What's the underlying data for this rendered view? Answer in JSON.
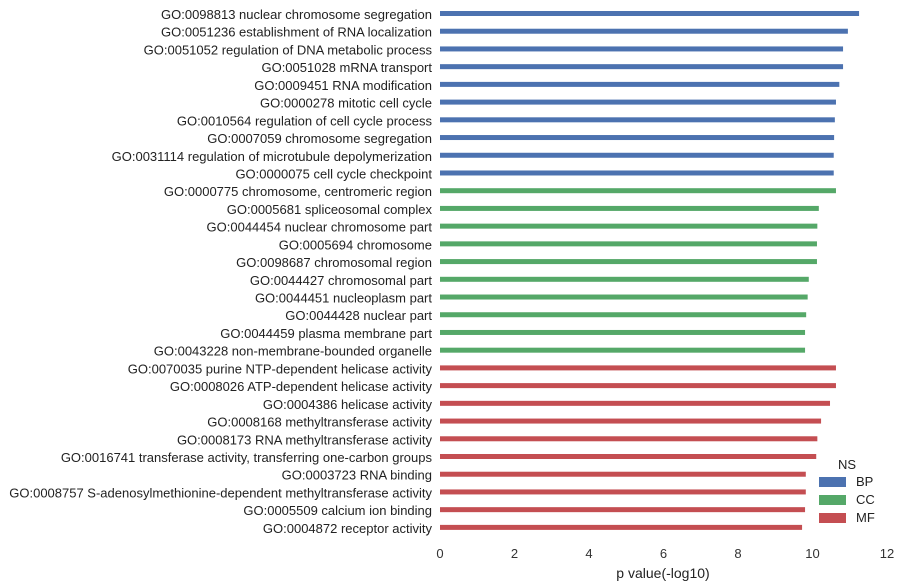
{
  "chart_data": {
    "type": "bar",
    "orientation": "horizontal",
    "xlabel": "p value(-log10)",
    "ylabel": "",
    "xlim": [
      0,
      12
    ],
    "xticks": [
      "0",
      "2",
      "4",
      "6",
      "8",
      "10",
      "12"
    ],
    "grid": false,
    "legend": {
      "title": "NS",
      "placement": "lower-right",
      "entries": [
        {
          "name": "BP",
          "color": "#4c72b0"
        },
        {
          "name": "CC",
          "color": "#55a868"
        },
        {
          "name": "MF",
          "color": "#c44e52"
        }
      ]
    },
    "categories": [
      "GO:0098813 nuclear chromosome segregation",
      "GO:0051236 establishment of RNA localization",
      "GO:0051052 regulation of DNA metabolic process",
      "GO:0051028 mRNA transport",
      "GO:0009451 RNA modification",
      "GO:0000278 mitotic cell cycle",
      "GO:0010564 regulation of cell cycle process",
      "GO:0007059 chromosome segregation",
      "GO:0031114 regulation of microtubule depolymerization",
      "GO:0000075 cell cycle checkpoint",
      "GO:0000775 chromosome, centromeric region",
      "GO:0005681 spliceosomal complex",
      "GO:0044454 nuclear chromosome part",
      "GO:0005694 chromosome",
      "GO:0098687 chromosomal region",
      "GO:0044427 chromosomal part",
      "GO:0044451 nucleoplasm part",
      "GO:0044428 nuclear part",
      "GO:0044459 plasma membrane part",
      "GO:0043228 non-membrane-bounded organelle",
      "GO:0070035 purine NTP-dependent helicase activity",
      "GO:0008026 ATP-dependent helicase activity",
      "GO:0004386 helicase activity",
      "GO:0008168 methyltransferase activity",
      "GO:0008173 RNA methyltransferase activity",
      "GO:0016741 transferase activity, transferring one-carbon groups",
      "GO:0003723 RNA binding",
      "GO:0008757 S-adenosylmethionine-dependent methyltransferase activity",
      "GO:0005509 calcium ion binding",
      "GO:0004872 receptor activity"
    ],
    "values": [
      11.25,
      10.95,
      10.82,
      10.82,
      10.72,
      10.63,
      10.6,
      10.58,
      10.57,
      10.57,
      10.63,
      10.17,
      10.13,
      10.12,
      10.12,
      9.9,
      9.87,
      9.83,
      9.8,
      9.8,
      10.63,
      10.63,
      10.47,
      10.23,
      10.13,
      10.1,
      9.82,
      9.82,
      9.8,
      9.72
    ],
    "groups": [
      "BP",
      "BP",
      "BP",
      "BP",
      "BP",
      "BP",
      "BP",
      "BP",
      "BP",
      "BP",
      "CC",
      "CC",
      "CC",
      "CC",
      "CC",
      "CC",
      "CC",
      "CC",
      "CC",
      "CC",
      "MF",
      "MF",
      "MF",
      "MF",
      "MF",
      "MF",
      "MF",
      "MF",
      "MF",
      "MF"
    ]
  }
}
